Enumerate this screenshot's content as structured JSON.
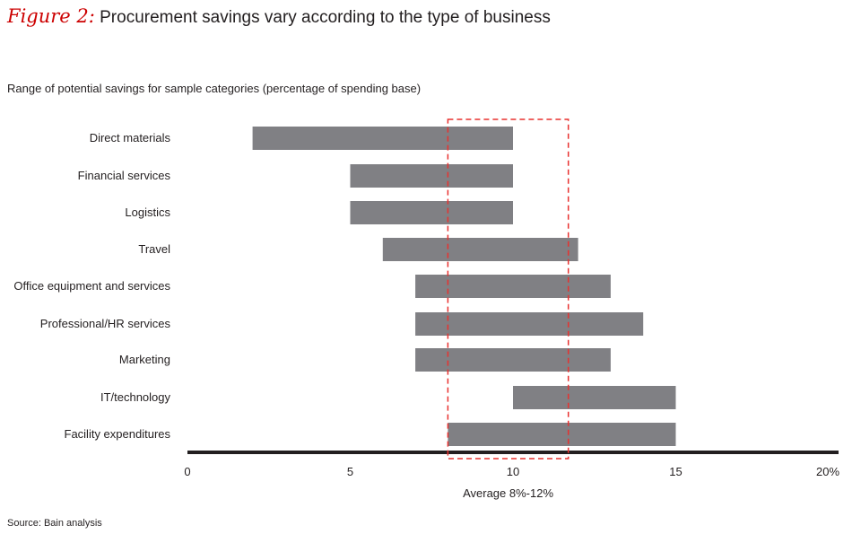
{
  "figure_label": "Figure 2:",
  "title": "Procurement savings vary according to the type of business",
  "subtitle": "Range of potential savings for sample categories (percentage of spending base)",
  "source": "Source: Bain analysis",
  "chart_data": {
    "type": "bar",
    "orientation": "horizontal",
    "subtype": "floating-range",
    "categories": [
      "Direct materials",
      "Financial services",
      "Logistics",
      "Travel",
      "Office equipment and services",
      "Professional/HR services",
      "Marketing",
      "IT/technology",
      "Facility expenditures"
    ],
    "series": [
      {
        "name": "low",
        "values": [
          2,
          5,
          5,
          6,
          7,
          7,
          7,
          10,
          8
        ]
      },
      {
        "name": "high",
        "values": [
          10,
          10,
          10,
          12,
          13,
          14,
          13,
          15,
          15
        ]
      }
    ],
    "xlim": [
      0,
      20
    ],
    "xticks": [
      0,
      5,
      10,
      15,
      20
    ],
    "xtick_labels": [
      "0",
      "5",
      "10",
      "15",
      "20%"
    ],
    "annotation": {
      "label": "Average 8%-12%",
      "range": [
        8,
        11.7
      ]
    },
    "bar_color": "#808084",
    "annotation_color": "#e8312f",
    "axis_color": "#231f20"
  }
}
